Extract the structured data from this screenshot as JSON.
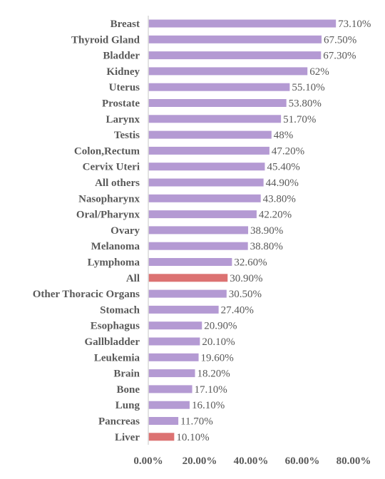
{
  "chart_data": {
    "type": "bar",
    "orientation": "horizontal",
    "categories": [
      "Breast",
      "Thyroid Gland",
      "Bladder",
      "Kidney",
      "Uterus",
      "Prostate",
      "Larynx",
      "Testis",
      "Colon,Rectum",
      "Cervix Uteri",
      "All others",
      "Nasopharynx",
      "Oral/Pharynx",
      "Ovary",
      "Melanoma",
      "Lymphoma",
      "All",
      "Other Thoracic Organs",
      "Stomach",
      "Esophagus",
      "Gallbladder",
      "Leukemia",
      "Brain",
      "Bone",
      "Lung",
      "Pancreas",
      "Liver"
    ],
    "values": [
      73.1,
      67.5,
      67.3,
      62,
      55.1,
      53.8,
      51.7,
      48,
      47.2,
      45.4,
      44.9,
      43.8,
      42.2,
      38.9,
      38.8,
      32.6,
      30.9,
      30.5,
      27.4,
      20.9,
      20.1,
      19.6,
      18.2,
      17.1,
      16.1,
      11.7,
      10.1
    ],
    "value_labels": [
      "73.10%",
      "67.50%",
      "67.30%",
      "62%",
      "55.10%",
      "53.80%",
      "51.70%",
      "48%",
      "47.20%",
      "45.40%",
      "44.90%",
      "43.80%",
      "42.20%",
      "38.90%",
      "38.80%",
      "32.60%",
      "30.90%",
      "30.50%",
      "27.40%",
      "20.90%",
      "20.10%",
      "19.60%",
      "18.20%",
      "17.10%",
      "16.10%",
      "11.70%",
      "10.10%"
    ],
    "highlighted": [
      "All",
      "Liver"
    ],
    "xlim": [
      0,
      80
    ],
    "xticks": [
      0,
      20,
      40,
      60,
      80
    ],
    "xtick_labels": [
      "0.00%",
      "20.00%",
      "40.00%",
      "60.00%",
      "80.00%"
    ],
    "colors": {
      "bar": "#b49ad3",
      "highlight": "#dc7272",
      "axis": "#d9d9d9",
      "text": "#595959"
    },
    "grid": false,
    "title": "",
    "xlabel": "",
    "ylabel": ""
  }
}
